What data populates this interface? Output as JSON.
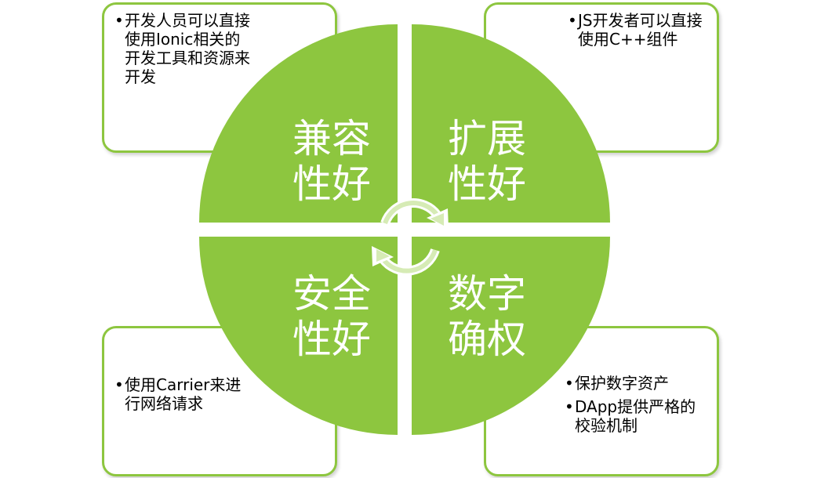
{
  "colors": {
    "green": "#8dc63f",
    "box_border": "#8dc63f",
    "label_text": "#ffffff",
    "body_text": "#000000"
  },
  "quadrants": {
    "top_left": {
      "title_line1": "兼容",
      "title_line2": "性好"
    },
    "top_right": {
      "title_line1": "扩展",
      "title_line2": "性好"
    },
    "bottom_left": {
      "title_line1": "安全",
      "title_line2": "性好"
    },
    "bottom_right": {
      "title_line1": "数字",
      "title_line2": "确权"
    }
  },
  "boxes": {
    "top_left": {
      "bullets": [
        "开发人员可以直接使用Ionic相关的开发工具和资源来开发"
      ]
    },
    "top_right": {
      "bullets": [
        "JS开发者可以直接使用C++组件"
      ]
    },
    "bottom_left": {
      "bullets": [
        "使用Carrier来进行网络请求"
      ]
    },
    "bottom_right": {
      "bullets": [
        "保护数字资产",
        "DApp提供严格的校验机制"
      ]
    }
  },
  "icons": {
    "center": "cycle-arrows-icon"
  }
}
